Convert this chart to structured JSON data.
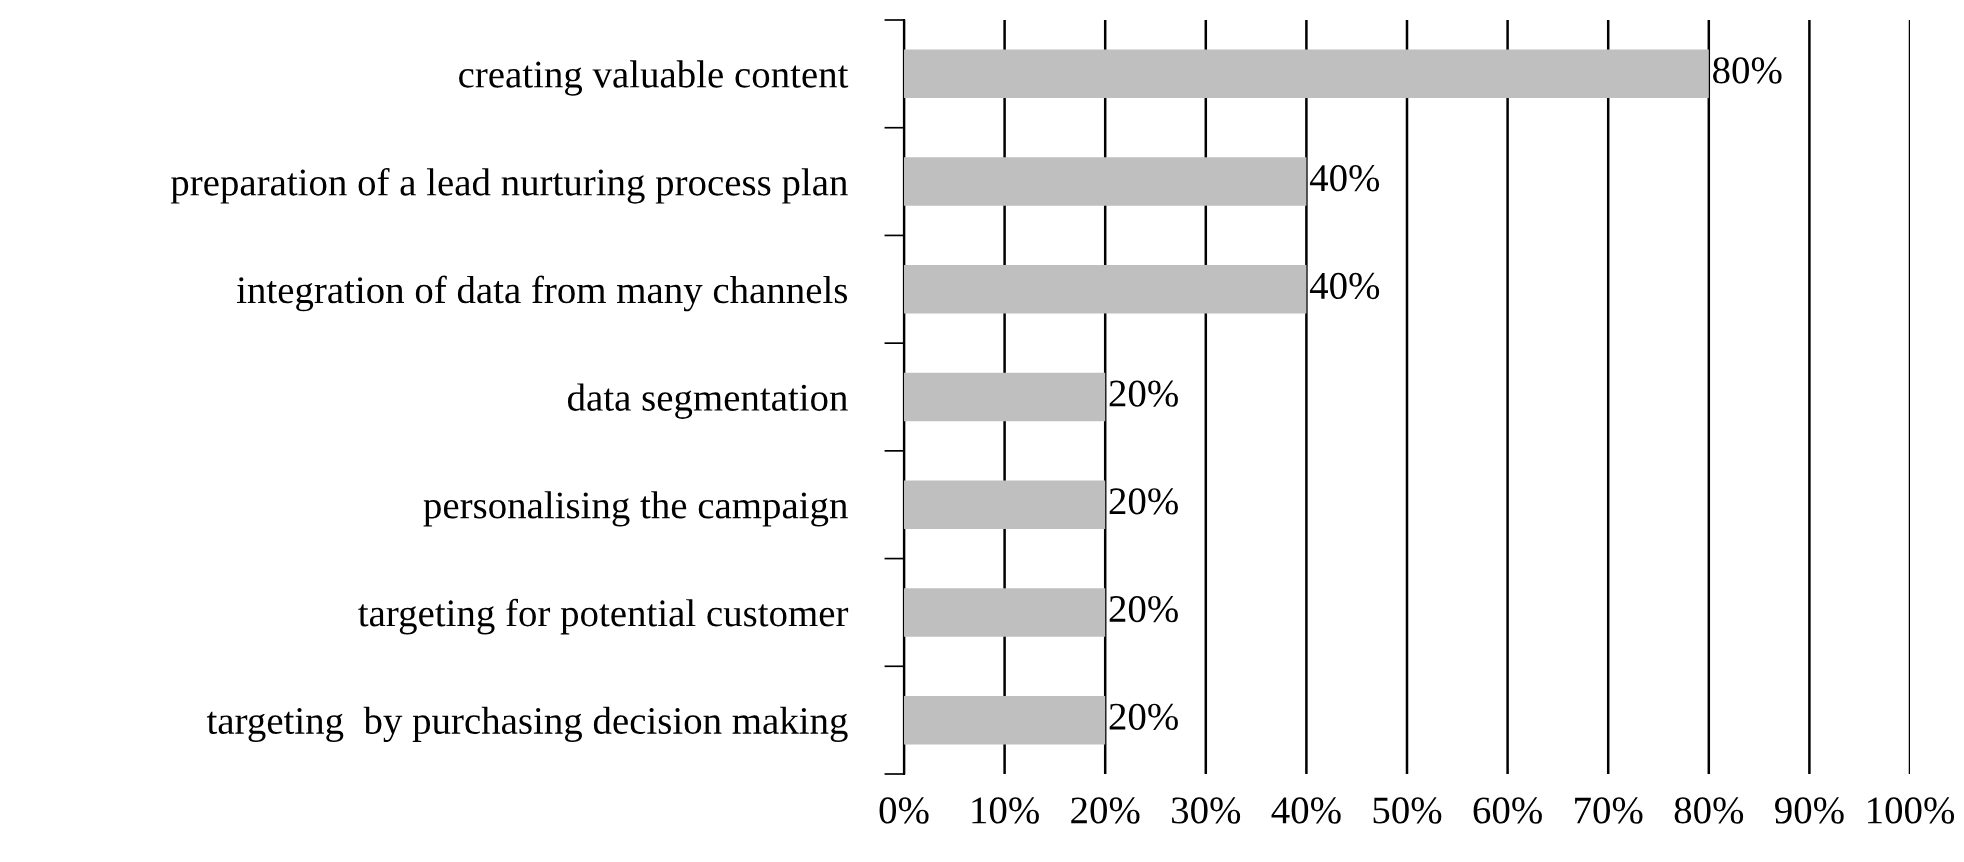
{
  "chart_data": {
    "type": "bar",
    "orientation": "horizontal",
    "categories": [
      "creating valuable content",
      "preparation of a lead nurturing process plan",
      "integration of data from many channels",
      "data segmentation",
      "personalising the campaign",
      "targeting for potential customer",
      "targeting  by purchasing decision making"
    ],
    "values": [
      80,
      40,
      40,
      20,
      20,
      20,
      20
    ],
    "value_labels": [
      "80%",
      "40%",
      "40%",
      "20%",
      "20%",
      "20%",
      "20%"
    ],
    "color": "#bfbfbf",
    "xlim": [
      0,
      100
    ],
    "xticks": [
      {
        "value": 0,
        "label": "0%"
      },
      {
        "value": 10,
        "label": "10%"
      },
      {
        "value": 20,
        "label": "20%"
      },
      {
        "value": 30,
        "label": "30%"
      },
      {
        "value": 40,
        "label": "40%"
      },
      {
        "value": 50,
        "label": "50%"
      },
      {
        "value": 60,
        "label": "60%"
      },
      {
        "value": 70,
        "label": "70%"
      },
      {
        "value": 80,
        "label": "80%"
      },
      {
        "value": 90,
        "label": "90%"
      },
      {
        "value": 100,
        "label": "100%"
      }
    ],
    "grid": "x"
  }
}
